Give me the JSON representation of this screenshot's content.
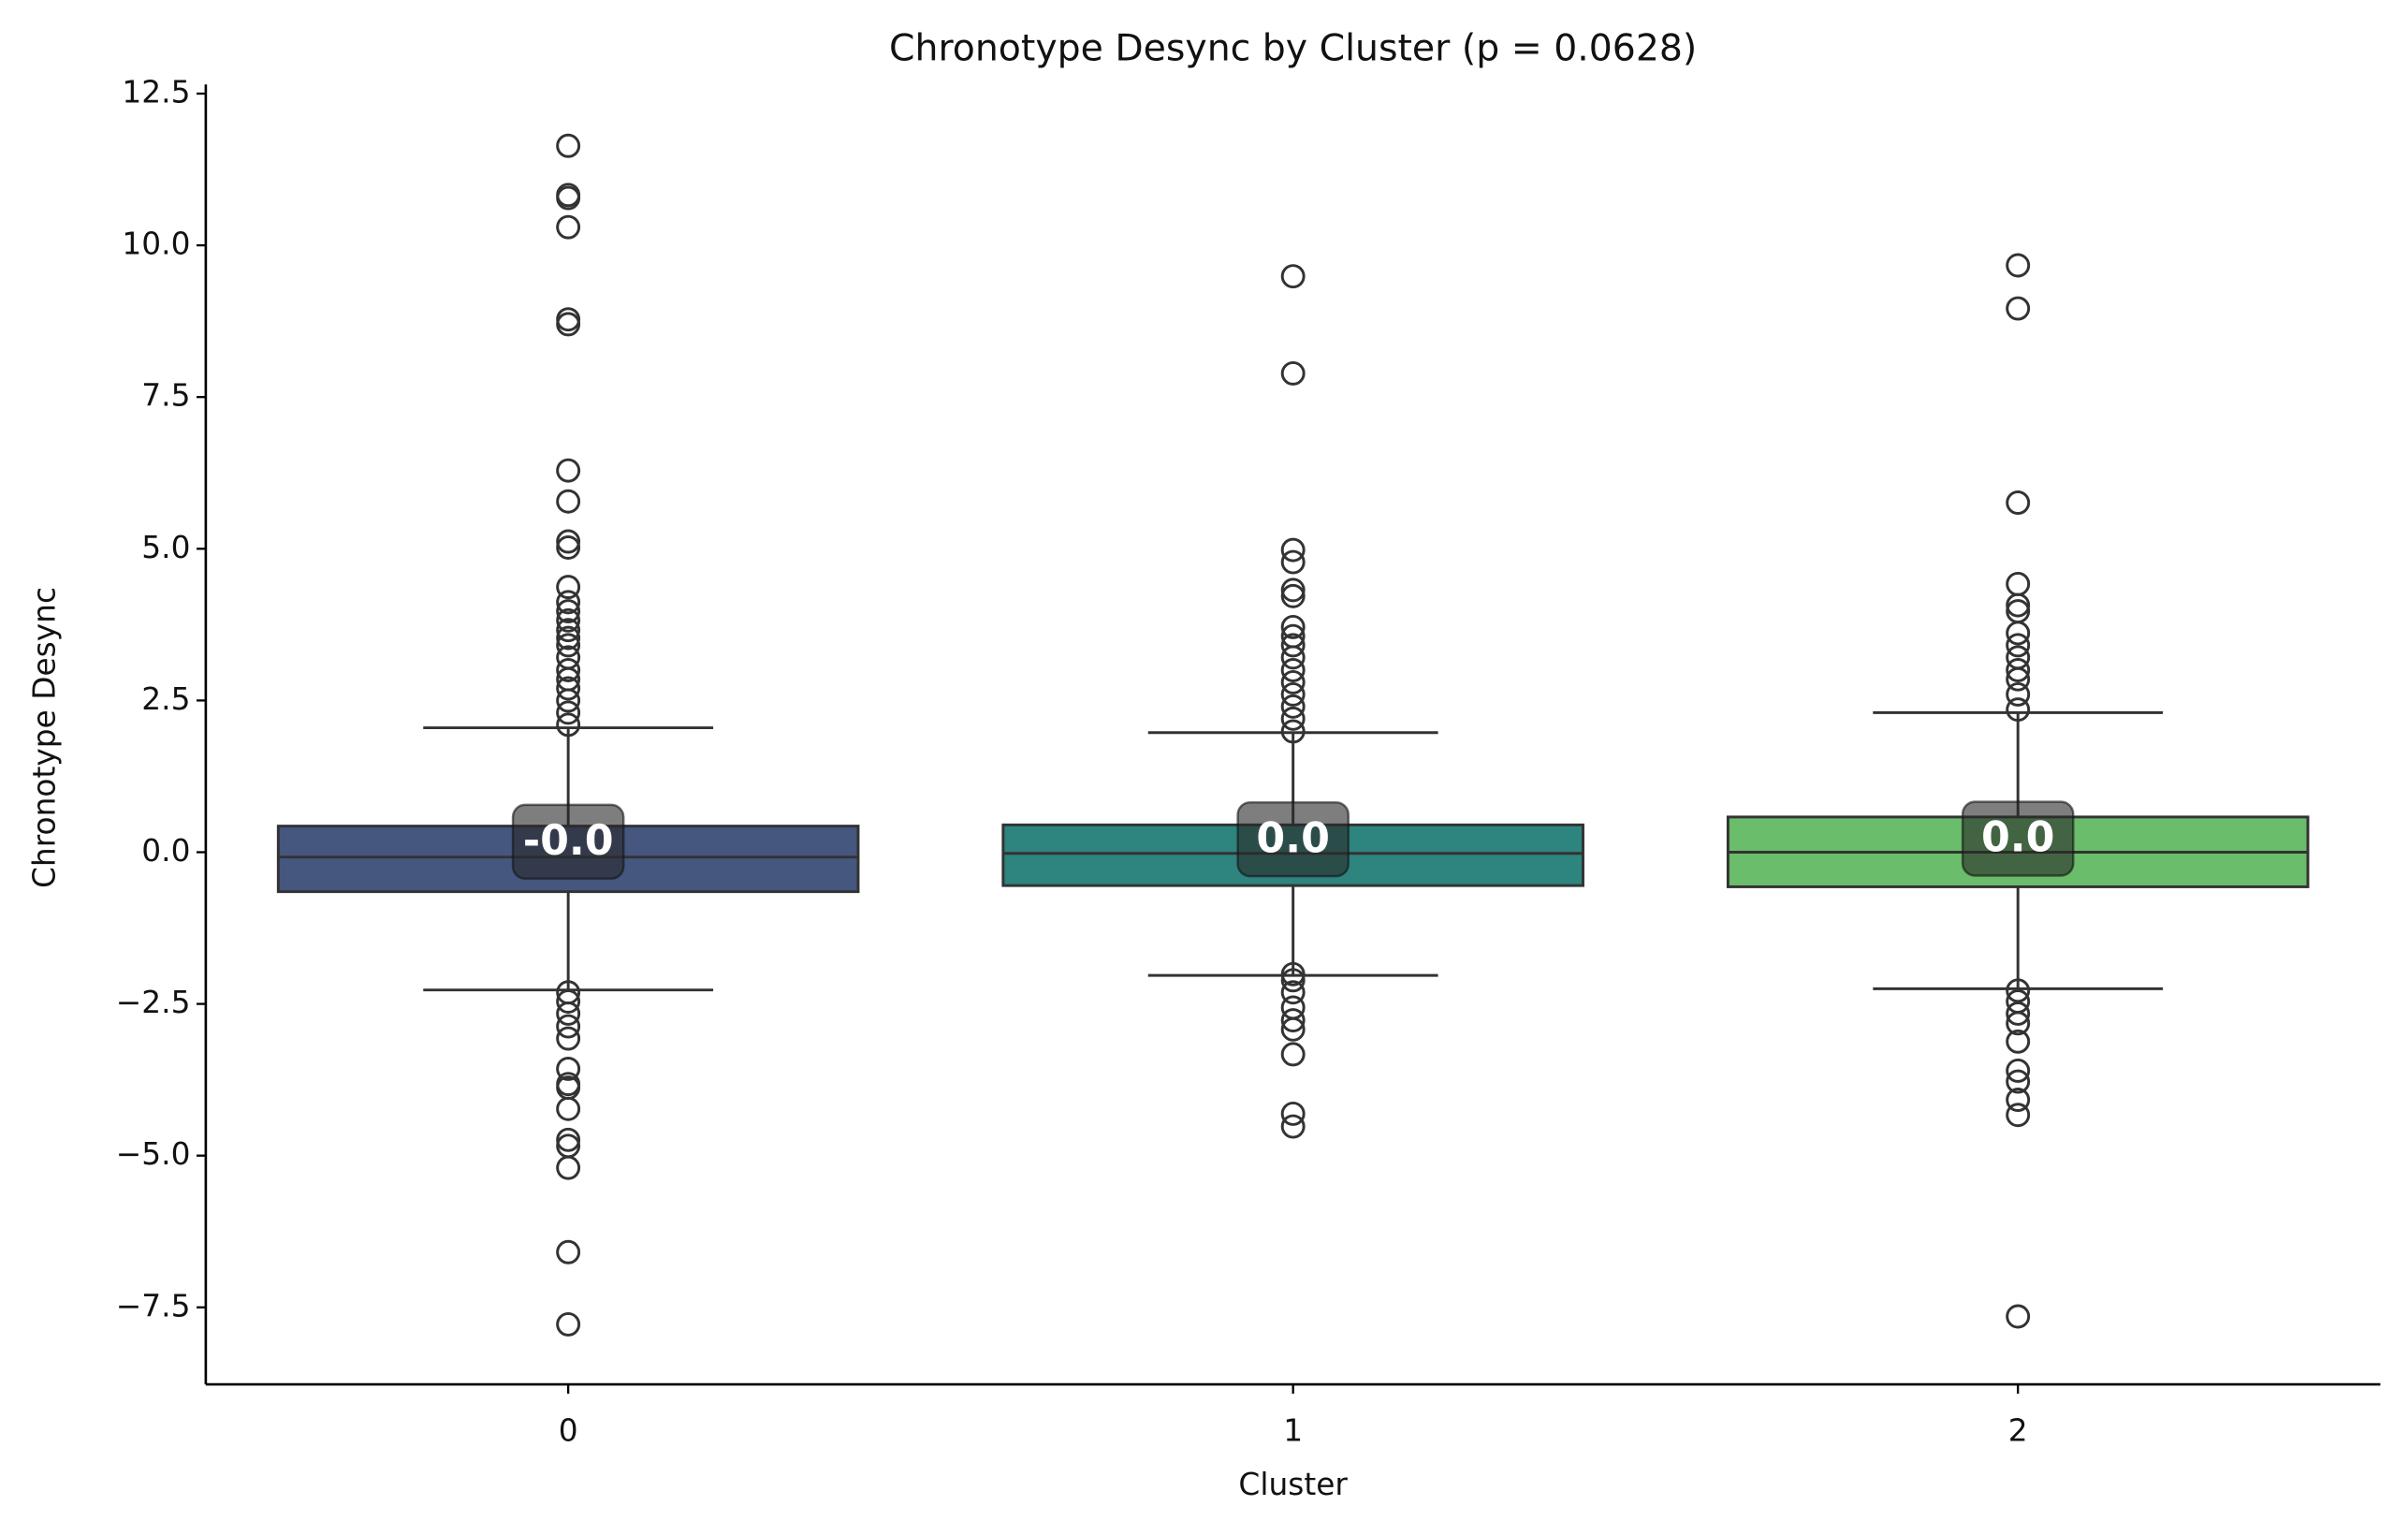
{
  "chart_data": {
    "type": "box",
    "title": "Chronotype Desync by Cluster (p = 0.0628)",
    "x_label": "Cluster",
    "y_label": "Chronotype Desync",
    "categories": [
      "0",
      "1",
      "2"
    ],
    "boxes": [
      {
        "color": "#45567f",
        "whislo": -2.27,
        "q1": -0.65,
        "median": -0.08,
        "q3": 0.43,
        "whishi": 2.05,
        "fliers": [
          11.64,
          10.83,
          10.78,
          10.3,
          8.78,
          8.7,
          6.29,
          5.78,
          5.12,
          5.02,
          4.37,
          4.12,
          3.97,
          3.82,
          3.66,
          3.53,
          3.41,
          3.21,
          3.0,
          2.85,
          2.7,
          2.5,
          2.3,
          2.1,
          -2.31,
          -2.46,
          -2.66,
          -2.87,
          -3.07,
          -3.57,
          -3.82,
          -3.88,
          -4.23,
          -4.74,
          -4.84,
          -5.2,
          -6.59,
          -7.78
        ]
      },
      {
        "color": "#2e847e",
        "whislo": -2.03,
        "q1": -0.55,
        "median": -0.02,
        "q3": 0.45,
        "whishi": 1.97,
        "fliers": [
          9.49,
          7.89,
          4.98,
          4.78,
          4.32,
          4.22,
          3.71,
          3.56,
          3.41,
          3.21,
          3.0,
          2.8,
          2.6,
          2.4,
          2.2,
          1.99,
          -2.01,
          -2.11,
          -2.31,
          -2.56,
          -2.77,
          -2.92,
          -3.33,
          -4.31,
          -4.52
        ]
      },
      {
        "color": "#6abd6a",
        "whislo": -2.25,
        "q1": -0.57,
        "median": 0.0,
        "q3": 0.58,
        "whishi": 2.3,
        "fliers": [
          9.67,
          8.96,
          5.76,
          4.42,
          4.07,
          3.97,
          3.61,
          3.41,
          3.21,
          3.0,
          2.85,
          2.6,
          2.35,
          -2.28,
          -2.46,
          -2.66,
          -2.82,
          -3.12,
          -3.6,
          -3.78,
          -4.08,
          -4.33,
          -7.65
        ]
      }
    ],
    "value_labels": [
      {
        "value": -0.03,
        "label": "-0.0"
      },
      {
        "value": 0.01,
        "label": "0.0"
      },
      {
        "value": 0.02,
        "label": "0.0"
      }
    ],
    "ylim": [
      -8.77,
      12.65
    ],
    "yticks": [
      {
        "value": -7.5,
        "label": "−7.5"
      },
      {
        "value": -5.0,
        "label": "−5.0"
      },
      {
        "value": -2.5,
        "label": "−2.5"
      },
      {
        "value": 0.0,
        "label": "0.0"
      },
      2.5,
      {
        "value": 5.0,
        "label": "5.0"
      },
      7.5,
      {
        "value": 10.0,
        "label": "10.0"
      },
      12.5
    ]
  }
}
